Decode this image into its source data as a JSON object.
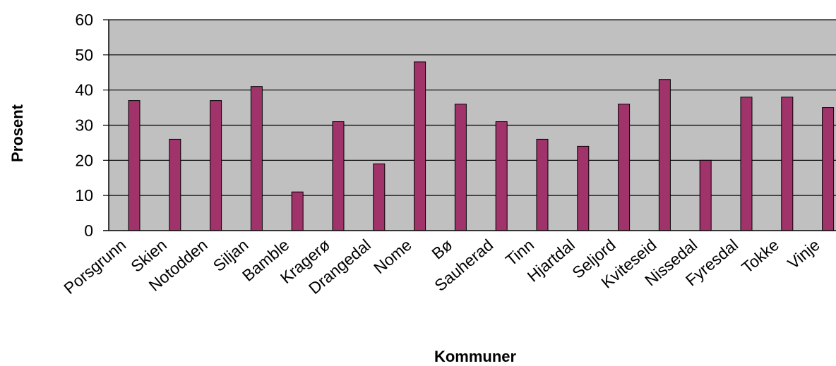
{
  "chart_data": {
    "type": "bar",
    "title": "",
    "xlabel": "Kommuner",
    "ylabel": "Prosent",
    "ylim": [
      0,
      60
    ],
    "yticks": [
      0,
      10,
      20,
      30,
      40,
      50,
      60
    ],
    "grid": true,
    "legend": "none",
    "categories": [
      "Porsgrunn",
      "Skien",
      "Notodden",
      "Siljan",
      "Bamble",
      "Kragerø",
      "Drangedal",
      "Nome",
      "Bø",
      "Sauherad",
      "Tinn",
      "Hjartdal",
      "Seljord",
      "Kviteseid",
      "Nissedal",
      "Fyresdal",
      "Tokke",
      "Vinje"
    ],
    "values": [
      37,
      26,
      37,
      41,
      11,
      31,
      19,
      48,
      36,
      31,
      26,
      24,
      36,
      43,
      20,
      38,
      38,
      35
    ],
    "colors": {
      "bar": "#a0336a",
      "plot_background": "#c0c0c0",
      "gridline": "#000000"
    }
  }
}
